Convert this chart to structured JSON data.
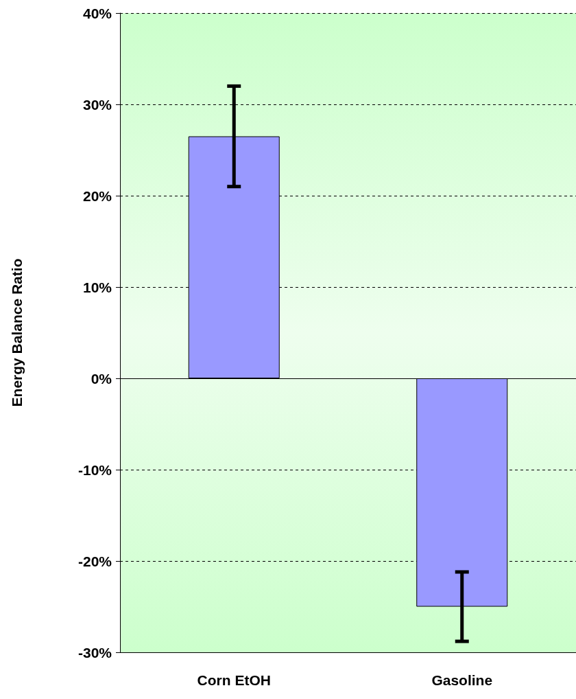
{
  "chart_data": {
    "type": "bar",
    "ylabel": "Energy Balance Ratio",
    "categories": [
      "Corn EtOH",
      "Gasoline"
    ],
    "values": [
      26.5,
      -25.0
    ],
    "errors": [
      5.5,
      3.8
    ],
    "color": "#9999ff",
    "ylim": [
      -30,
      40
    ],
    "yticks": [
      {
        "value": -30,
        "label": "-30%"
      },
      {
        "value": -20,
        "label": "-20%"
      },
      {
        "value": -10,
        "label": "-10%"
      },
      {
        "value": 0,
        "label": "0%"
      },
      {
        "value": 10,
        "label": "10%"
      },
      {
        "value": 20,
        "label": "20%"
      },
      {
        "value": 30,
        "label": "30%"
      },
      {
        "value": 40,
        "label": "40%"
      }
    ],
    "grid": "y"
  }
}
